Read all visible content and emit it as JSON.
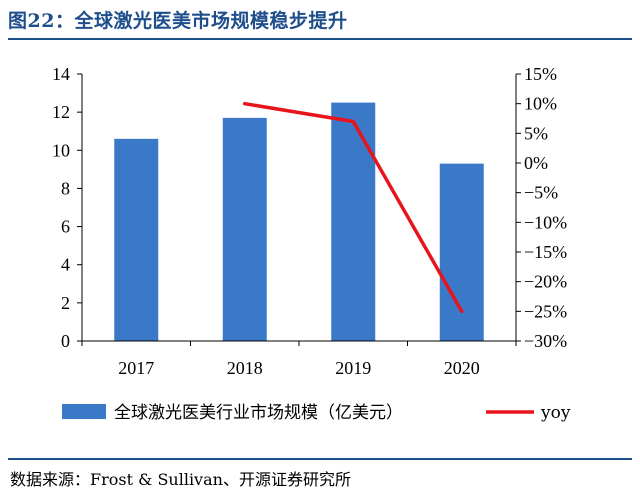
{
  "header": {
    "title": "图22：全球激光医美市场规模稳步提升"
  },
  "source": {
    "text": "数据来源：Frost  &  Sullivan、开源证券研究所"
  },
  "colors": {
    "bar": "#3a78c8",
    "line": "#e8141c",
    "title": "#1f4e8c"
  },
  "chart_data": {
    "type": "bar",
    "categories": [
      "2017",
      "2018",
      "2019",
      "2020"
    ],
    "series": [
      {
        "name": "全球激光医美行业市场规模（亿美元）",
        "type": "bar",
        "axis": "left",
        "values": [
          10.6,
          11.7,
          12.5,
          9.3
        ]
      },
      {
        "name": "yoy",
        "type": "line",
        "axis": "right",
        "values": [
          null,
          10.0,
          7.0,
          -25.0
        ]
      }
    ],
    "y_left": {
      "min": 0,
      "max": 14,
      "ticks": [
        "0",
        "2",
        "4",
        "6",
        "8",
        "10",
        "12",
        "14"
      ]
    },
    "y_right": {
      "min": -30,
      "max": 15,
      "ticks": [
        "-30%",
        "-25%",
        "-20%",
        "-15%",
        "-10%",
        "-5%",
        "0%",
        "5%",
        "10%",
        "15%"
      ]
    },
    "legend_position": "bottom",
    "grid": false
  }
}
